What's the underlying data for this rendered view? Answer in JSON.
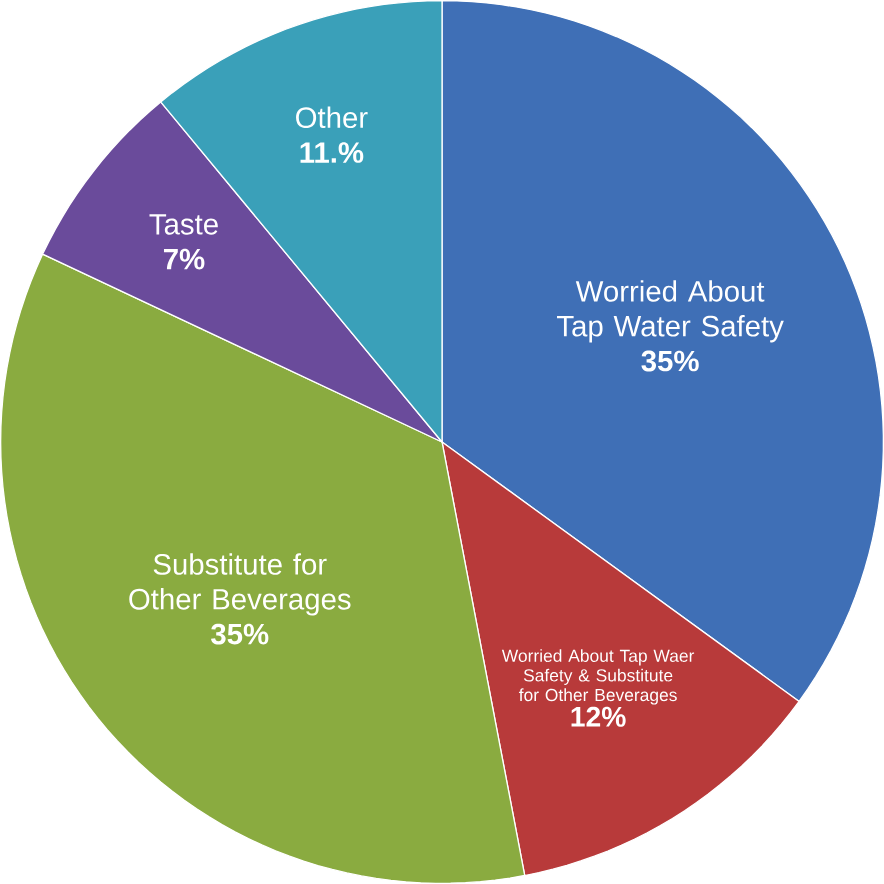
{
  "chart_data": {
    "type": "pie",
    "categories": [
      "Worried About Tap Water Safety",
      "Worried About Tap Waer Safety & Substitute for Other Beverages",
      "Substitute for Other Beverages",
      "Taste",
      "Other"
    ],
    "values": [
      35,
      12,
      35,
      7,
      11
    ],
    "colors": [
      "#3f6fb6",
      "#b83a3a",
      "#8aab40",
      "#6a4b9b",
      "#3aa0b9"
    ],
    "value_labels": [
      "35%",
      "12%",
      "35%",
      "7%",
      "11.%"
    ]
  }
}
